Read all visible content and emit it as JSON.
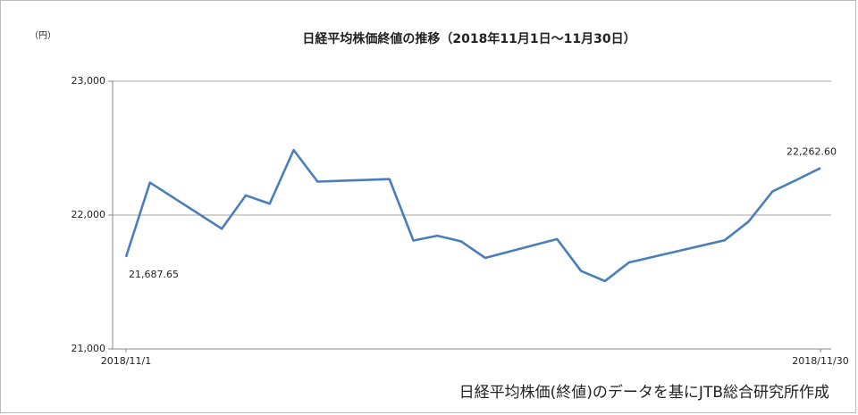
{
  "chart_data": {
    "type": "line",
    "title": "日経平均株価終値の推移（2018年11月1日～11月30日）",
    "y_label": "（円）",
    "source": "日経平均株価(終値)のデータを基にJTB総合研究所作成",
    "x": [
      "2018/11/1",
      "2018/11/2",
      "2018/11/5",
      "2018/11/6",
      "2018/11/7",
      "2018/11/8",
      "2018/11/9",
      "2018/11/12",
      "2018/11/13",
      "2018/11/14",
      "2018/11/15",
      "2018/11/16",
      "2018/11/19",
      "2018/11/20",
      "2018/11/21",
      "2018/11/22",
      "2018/11/26",
      "2018/11/27",
      "2018/11/28",
      "2018/11/29",
      "2018/11/30"
    ],
    "series": [
      {
        "name": "日経平均株価終値",
        "color": "#4a7ebb",
        "values": [
          21687.65,
          22243,
          21898,
          22147,
          22085,
          22486,
          22250,
          22269,
          21810,
          21846,
          21803,
          21680,
          21821,
          21583,
          21507,
          21646,
          21812,
          21952,
          22177,
          22262.6,
          22351
        ]
      }
    ],
    "annotations": [
      "21,687.65",
      "22,262.60"
    ],
    "xlim": [
      "2018/11/1",
      "2018/11/30"
    ],
    "xticks": [
      "2018/11/1",
      "2018/11/30"
    ],
    "ylim": [
      21000,
      23000
    ],
    "yticks": [
      {
        "value": 21000,
        "label": "21,000"
      },
      {
        "value": 22000,
        "label": "22,000"
      },
      {
        "value": 23000,
        "label": "23,000"
      }
    ],
    "grid": true
  }
}
